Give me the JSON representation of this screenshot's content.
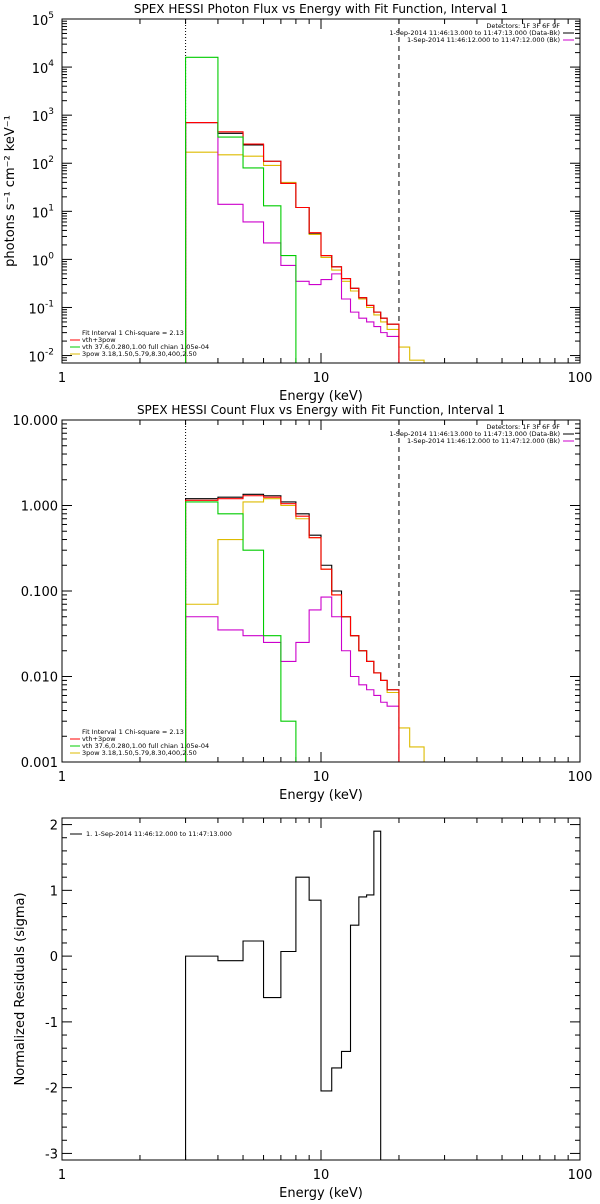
{
  "chart_data": [
    {
      "type": "line",
      "title": "SPEX HESSI Photon Flux vs Energy with Fit Function, Interval 1",
      "xlabel": "Energy (keV)",
      "ylabel": "photons s⁻¹ cm⁻² keV⁻¹",
      "xscale": "log",
      "yscale": "log",
      "xlim": [
        1,
        100
      ],
      "ylim": [
        0.007,
        100000
      ],
      "x_ticks": [
        {
          "v": 1,
          "label": "1"
        },
        {
          "v": 10,
          "label": "10"
        },
        {
          "v": 100,
          "label": "100"
        }
      ],
      "y_ticks": [
        {
          "v": 0.01,
          "base": "10",
          "exp": "-2"
        },
        {
          "v": 0.1,
          "base": "10",
          "exp": "-1"
        },
        {
          "v": 1,
          "base": "10",
          "exp": "0"
        },
        {
          "v": 10,
          "base": "10",
          "exp": "1"
        },
        {
          "v": 100,
          "base": "10",
          "exp": "2"
        },
        {
          "v": 1000,
          "base": "10",
          "exp": "3"
        },
        {
          "v": 10000,
          "base": "10",
          "exp": "4"
        },
        {
          "v": 100000,
          "base": "10",
          "exp": "5"
        }
      ],
      "top_right_legend": [
        {
          "text": "Detectors: 1F 3F 6F 9F",
          "color": ""
        },
        {
          "text": "1-Sep-2014 11:46:13.000 to 11:47:13.000 (Data-Bk)",
          "color": "#000000"
        },
        {
          "text": "1-Sep-2014 11:46:12.000 to 11:47:12.000 (Bk)",
          "color": "#cc00cc"
        }
      ],
      "bottom_left_legend": [
        {
          "text": "Fit Interval 1    Chi-square = 2.13",
          "color": ""
        },
        {
          "text": "vth+3pow",
          "color": "#ff0000"
        },
        {
          "text": "vth 37.6,0.280,1.00  full chian 1.05e-04",
          "color": "#00cc00"
        },
        {
          "text": "3pow 3.18,1.50,5.79,8.30,400,2.50",
          "color": "#ddbb00"
        }
      ],
      "vlines": [
        {
          "x": 3,
          "style": "dotted"
        },
        {
          "x": 20,
          "style": "dashed"
        }
      ],
      "edges": [
        3,
        4,
        5,
        6,
        7,
        8,
        9,
        10,
        11,
        12,
        13,
        14,
        15,
        16,
        17,
        18,
        20,
        22,
        25
      ],
      "series": [
        {
          "color": "#000000",
          "values": [
            700,
            420,
            240,
            110,
            38,
            12,
            3.5,
            1.2,
            0.7,
            0.4,
            0.25,
            0.16,
            0.11,
            0.08,
            0.06,
            0.045
          ]
        },
        {
          "color": "#ff0000",
          "values": [
            700,
            450,
            250,
            110,
            38,
            12,
            3.6,
            1.2,
            0.7,
            0.4,
            0.25,
            0.16,
            0.11,
            0.08,
            0.06,
            0.045
          ]
        },
        {
          "color": "#00cc00",
          "values": [
            16000,
            350,
            80,
            13,
            1.2,
            0.0001
          ]
        },
        {
          "color": "#ddbb00",
          "values": [
            170,
            150,
            140,
            90,
            40,
            12,
            3.3,
            1.1,
            0.6,
            0.35,
            0.22,
            0.15,
            0.1,
            0.07,
            0.05,
            0.035,
            0.015,
            0.008
          ]
        },
        {
          "color": "#cc00cc",
          "values": [
            700,
            14,
            6,
            2.2,
            0.75,
            0.35,
            0.3,
            0.38,
            0.5,
            0.15,
            0.08,
            0.06,
            0.05,
            0.04,
            0.03,
            0.025,
            0.001
          ]
        }
      ]
    },
    {
      "type": "line",
      "title": "SPEX HESSI Count Flux vs Energy with Fit Function, Interval 1",
      "xlabel": "Energy (keV)",
      "ylabel": "",
      "xscale": "log",
      "yscale": "log",
      "xlim": [
        1,
        100
      ],
      "ylim": [
        0.001,
        10
      ],
      "x_ticks": [
        {
          "v": 1,
          "label": "1"
        },
        {
          "v": 10,
          "label": "10"
        },
        {
          "v": 100,
          "label": "100"
        }
      ],
      "y_ticks": [
        {
          "v": 0.001,
          "label": "0.001"
        },
        {
          "v": 0.01,
          "label": "0.010"
        },
        {
          "v": 0.1,
          "label": "0.100"
        },
        {
          "v": 1,
          "label": "1.000"
        },
        {
          "v": 10,
          "label": "10.000"
        }
      ],
      "top_right_legend": [
        {
          "text": "Detectors: 1F 3F 6F 9F",
          "color": ""
        },
        {
          "text": "1-Sep-2014 11:46:13.000 to 11:47:13.000 (Data-Bk)",
          "color": "#000000"
        },
        {
          "text": "1-Sep-2014 11:46:12.000 to 11:47:12.000 (Bk)",
          "color": "#cc00cc"
        }
      ],
      "bottom_left_legend": [
        {
          "text": "Fit Interval 1    Chi-square = 2.13",
          "color": ""
        },
        {
          "text": "vth+3pow",
          "color": "#ff0000"
        },
        {
          "text": "vth 37.6,0.280,1.00  full chian 1.05e-04",
          "color": "#00cc00"
        },
        {
          "text": "3pow 3.18,1.50,5.79,8.30,400,2.50",
          "color": "#ddbb00"
        }
      ],
      "vlines": [
        {
          "x": 3,
          "style": "dotted"
        },
        {
          "x": 20,
          "style": "dashed"
        }
      ],
      "edges": [
        3,
        4,
        5,
        6,
        7,
        8,
        9,
        10,
        11,
        12,
        13,
        14,
        15,
        16,
        17,
        18,
        20,
        22,
        25
      ],
      "series": [
        {
          "color": "#000000",
          "values": [
            1.2,
            1.25,
            1.35,
            1.3,
            1.1,
            0.8,
            0.45,
            0.2,
            0.1,
            0.05,
            0.03,
            0.02,
            0.015,
            0.011,
            0.009,
            0.007
          ]
        },
        {
          "color": "#ff0000",
          "values": [
            1.15,
            1.2,
            1.3,
            1.25,
            1.05,
            0.75,
            0.42,
            0.18,
            0.09,
            0.05,
            0.03,
            0.02,
            0.015,
            0.011,
            0.009,
            0.007
          ]
        },
        {
          "color": "#00cc00",
          "values": [
            1.1,
            0.8,
            0.3,
            0.03,
            0.003,
            0.0001
          ]
        },
        {
          "color": "#ddbb00",
          "values": [
            0.07,
            0.4,
            1.1,
            1.2,
            1.0,
            0.7,
            0.42,
            0.18,
            0.09,
            0.05,
            0.03,
            0.02,
            0.015,
            0.011,
            0.009,
            0.0065,
            0.0025,
            0.0015
          ]
        },
        {
          "color": "#cc00cc",
          "values": [
            0.05,
            0.035,
            0.03,
            0.025,
            0.015,
            0.025,
            0.06,
            0.085,
            0.05,
            0.02,
            0.01,
            0.008,
            0.007,
            0.006,
            0.005,
            0.0045,
            0.0001
          ]
        }
      ]
    },
    {
      "type": "line",
      "title": "",
      "xlabel": "Energy (keV)",
      "ylabel": "Normalized Residuals (sigma)",
      "xscale": "log",
      "yscale": "linear",
      "xlim": [
        1,
        100
      ],
      "ylim": [
        -3.1,
        2.1
      ],
      "x_ticks": [
        {
          "v": 1,
          "label": "1"
        },
        {
          "v": 10,
          "label": "10"
        },
        {
          "v": 100,
          "label": "100"
        }
      ],
      "y_ticks": [
        {
          "v": -3,
          "label": "-3"
        },
        {
          "v": -2,
          "label": "-2"
        },
        {
          "v": -1,
          "label": "-1"
        },
        {
          "v": 0,
          "label": "0"
        },
        {
          "v": 1,
          "label": "1"
        },
        {
          "v": 2,
          "label": "2"
        }
      ],
      "top_left_legend": [
        {
          "text": "1.  1-Sep-2014 11:46:12.000 to 11:47:13.000",
          "color": "#000000"
        }
      ],
      "edges": [
        3,
        4,
        5,
        6,
        7,
        8,
        9,
        10,
        11,
        12,
        13,
        14,
        15,
        16,
        17,
        18,
        20
      ],
      "series": [
        {
          "color": "#000000",
          "values": [
            0.0,
            -0.07,
            0.23,
            -0.63,
            0.07,
            1.2,
            0.85,
            -2.05,
            -1.7,
            -1.45,
            0.47,
            0.9,
            0.93,
            1.9
          ]
        }
      ]
    }
  ]
}
